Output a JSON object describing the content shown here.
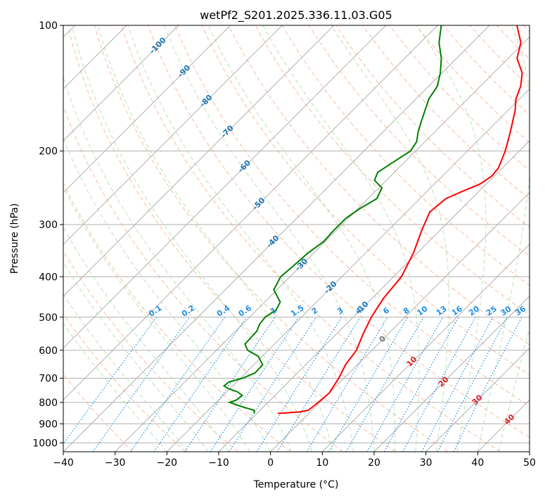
{
  "chart_data": {
    "type": "line",
    "chart_kind": "skew-T log-P",
    "title": "wetPf2_S201.2025.336.11.03.G05",
    "xlabel": "Temperature (°C)",
    "ylabel": "Pressure (hPa)",
    "xlim": [
      -40,
      50
    ],
    "ylim": [
      1050,
      100
    ],
    "y_scale": "log",
    "x_ticks": [
      -40,
      -30,
      -20,
      -10,
      0,
      10,
      20,
      30,
      40,
      50
    ],
    "x_tick_labels": [
      "−40",
      "−30",
      "−20",
      "−10",
      "0",
      "10",
      "20",
      "30",
      "40",
      "50"
    ],
    "y_ticks": [
      1000,
      900,
      800,
      700,
      600,
      500,
      400,
      300,
      200,
      100
    ],
    "y_tick_labels": [
      "1000",
      "900",
      "800",
      "700",
      "600",
      "500",
      "400",
      "300",
      "200",
      "100"
    ],
    "grid": true,
    "series": [
      {
        "color": "#ff0000",
        "points": [
          [
            850,
            -6.0
          ],
          [
            848,
            -4.5
          ],
          [
            843,
            -2.0
          ],
          [
            835,
            -0.7
          ],
          [
            800,
            -0.3
          ],
          [
            760,
            0.0
          ],
          [
            700,
            -1.0
          ],
          [
            650,
            -2.3
          ],
          [
            600,
            -3.0
          ],
          [
            550,
            -4.8
          ],
          [
            500,
            -6.5
          ],
          [
            450,
            -7.8
          ],
          [
            400,
            -8.5
          ],
          [
            350,
            -10.8
          ],
          [
            310,
            -13.5
          ],
          [
            280,
            -15.5
          ],
          [
            260,
            -15.0
          ],
          [
            250,
            -13.2
          ],
          [
            240,
            -11.2
          ],
          [
            230,
            -10.5
          ],
          [
            220,
            -10.7
          ],
          [
            200,
            -12.7
          ],
          [
            180,
            -15.4
          ],
          [
            160,
            -18.6
          ],
          [
            150,
            -20.7
          ],
          [
            140,
            -22.2
          ],
          [
            130,
            -24.5
          ],
          [
            120,
            -28.3
          ],
          [
            110,
            -30.6
          ],
          [
            100,
            -34.7
          ]
        ]
      },
      {
        "color": "#008000",
        "points": [
          [
            850,
            -10.5
          ],
          [
            835,
            -11.2
          ],
          [
            820,
            -14.0
          ],
          [
            800,
            -17.4
          ],
          [
            790,
            -16.6
          ],
          [
            770,
            -16.3
          ],
          [
            755,
            -17.9
          ],
          [
            740,
            -20.5
          ],
          [
            730,
            -21.7
          ],
          [
            715,
            -21.5
          ],
          [
            700,
            -19.6
          ],
          [
            680,
            -18.2
          ],
          [
            650,
            -18.3
          ],
          [
            620,
            -20.8
          ],
          [
            600,
            -24.0
          ],
          [
            580,
            -25.7
          ],
          [
            560,
            -25.8
          ],
          [
            540,
            -25.9
          ],
          [
            520,
            -26.7
          ],
          [
            500,
            -27.0
          ],
          [
            480,
            -26.3
          ],
          [
            460,
            -27.0
          ],
          [
            430,
            -30.6
          ],
          [
            400,
            -31.8
          ],
          [
            380,
            -31.5
          ],
          [
            350,
            -31.1
          ],
          [
            330,
            -30.3
          ],
          [
            310,
            -30.5
          ],
          [
            290,
            -30.5
          ],
          [
            275,
            -29.7
          ],
          [
            260,
            -28.3
          ],
          [
            245,
            -29.4
          ],
          [
            235,
            -32.3
          ],
          [
            225,
            -33.2
          ],
          [
            215,
            -32.4
          ],
          [
            200,
            -31.0
          ],
          [
            190,
            -31.6
          ],
          [
            180,
            -33.2
          ],
          [
            170,
            -34.6
          ],
          [
            160,
            -36.0
          ],
          [
            150,
            -37.5
          ],
          [
            140,
            -38.3
          ],
          [
            130,
            -40.3
          ],
          [
            120,
            -42.9
          ],
          [
            110,
            -46.4
          ],
          [
            100,
            -49.3
          ]
        ]
      }
    ],
    "dry_adiabat_labels": [
      "-100",
      "-90",
      "-80",
      "-70",
      "-60",
      "-50",
      "-40",
      "-30",
      "-20",
      "-10",
      "0",
      "10",
      "20",
      "30",
      "40"
    ],
    "mixing_ratio_labels": [
      "0.1",
      "0.2",
      "0.4",
      "0.6",
      "1",
      "1.5",
      "2",
      "3",
      "4",
      "6",
      "8",
      "10",
      "13",
      "16",
      "20",
      "25",
      "30",
      "36"
    ],
    "colors": {
      "temperature": "#ff0000",
      "dewpoint": "#008000",
      "isotherms": "#b0b0b0",
      "dry_adiabats": "#f4a582",
      "moist_adiabats": "#a6d8a0",
      "mixing_ratio": "#1f8fe8",
      "adiabat_label_cold": "#2176b4",
      "adiabat_label_warm": "#d62728",
      "adiabat_label_zero": "#777777"
    }
  }
}
